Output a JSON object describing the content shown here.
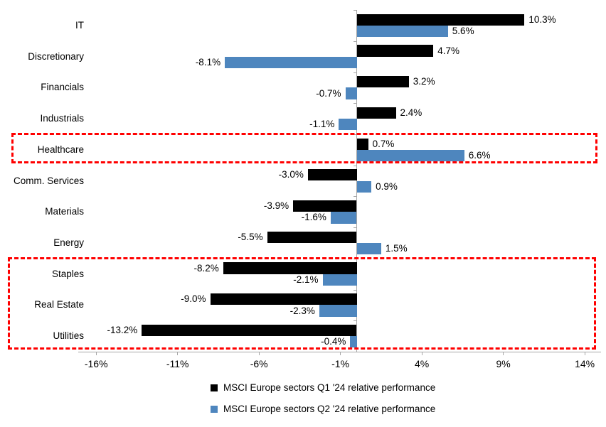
{
  "chart_data": {
    "type": "bar",
    "orientation": "horizontal",
    "title": "",
    "categories": [
      "IT",
      "Discretionary",
      "Financials",
      "Industrials",
      "Healthcare",
      "Comm. Services",
      "Materials",
      "Energy",
      "Staples",
      "Real Estate",
      "Utilities"
    ],
    "series": [
      {
        "name": "MSCI Europe sectors Q1 '24 relative performance",
        "color": "#000000",
        "values": [
          10.3,
          4.7,
          3.2,
          2.4,
          0.7,
          -3.0,
          -3.9,
          -5.5,
          -8.2,
          -9.0,
          -13.2
        ],
        "labels": [
          "10.3%",
          "4.7%",
          "3.2%",
          "2.4%",
          "0.7%",
          "-3.0%",
          "-3.9%",
          "-5.5%",
          "-8.2%",
          "-9.0%",
          "-13.2%"
        ]
      },
      {
        "name": "MSCI Europe sectors Q2 '24 relative performance",
        "color": "#4E86BE",
        "values": [
          5.6,
          -8.1,
          -0.7,
          -1.1,
          6.6,
          0.9,
          -1.6,
          1.5,
          -2.1,
          -2.3,
          -0.4
        ],
        "labels": [
          "5.6%",
          "-8.1%",
          "-0.7%",
          "-1.1%",
          "6.6%",
          "0.9%",
          "-1.6%",
          "1.5%",
          "-2.1%",
          "-2.3%",
          "-0.4%"
        ]
      }
    ],
    "x_ticks": [
      -16,
      -11,
      -6,
      -1,
      4,
      9,
      14
    ],
    "x_tick_labels": [
      "-16%",
      "-11%",
      "-6%",
      "-1%",
      "4%",
      "9%",
      "14%"
    ],
    "xlim": [
      -17.1,
      15
    ],
    "grid": false,
    "axis_color": "#A6A6A6",
    "legend_position": "bottom-center",
    "highlights": [
      {
        "name": "highlight-box-healthcare",
        "categories": [
          "Healthcare"
        ],
        "color": "#FF0000"
      },
      {
        "name": "highlight-box-defensives",
        "categories": [
          "Staples",
          "Real Estate",
          "Utilities"
        ],
        "color": "#FF0000"
      }
    ]
  }
}
